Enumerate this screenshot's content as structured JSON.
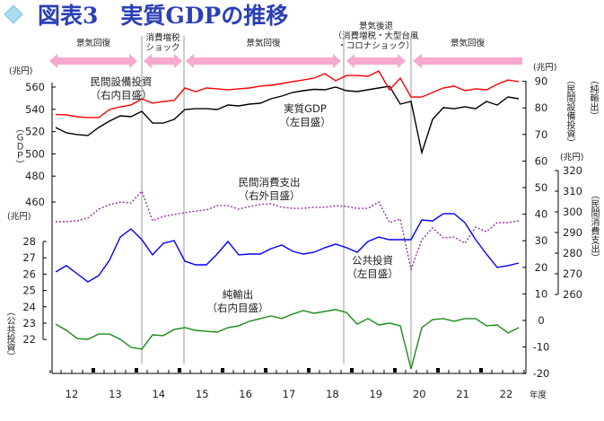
{
  "title": "図表3　実質GDPの推移",
  "colors": {
    "gdp": "#000000",
    "capex": "#ff0000",
    "consumption": "#9b2ca8",
    "public": "#0000ff",
    "netexports": "#1a8a1a",
    "arrow": "#f6a8cf",
    "title": "#2b3fb5"
  },
  "periods": [
    {
      "label": "景気回復",
      "direction": "both"
    },
    {
      "label": "消費増税\nショック",
      "direction": "both"
    },
    {
      "label": "景気回復",
      "direction": "both"
    },
    {
      "label": "景気後退\n（消費増税・大型台風\n・コロナショック）",
      "direction": "both"
    },
    {
      "label": "景気回復",
      "direction": "left"
    }
  ],
  "chart_data": {
    "type": "line",
    "xlabel": "年度",
    "x_tick_labels": [
      "12",
      "13",
      "14",
      "15",
      "16",
      "17",
      "18",
      "19",
      "20",
      "21",
      "22"
    ],
    "quarters_per_year": 4,
    "axes": {
      "left_gdp": {
        "unit": "(兆円)",
        "label": "（ＧＤＰ）",
        "ticks": [
          460,
          480,
          500,
          520,
          540,
          560
        ]
      },
      "left_public": {
        "unit": "(兆円)",
        "label": "（公共投資）",
        "ticks": [
          22,
          23,
          24,
          25,
          26,
          27,
          28
        ]
      },
      "right_inner": {
        "unit": "(兆円)",
        "label_a": "（民間設備投資）",
        "label_b": "（純輸出）",
        "ticks": [
          -20,
          -10,
          0,
          10,
          20,
          30,
          40,
          50,
          60,
          70,
          80,
          90
        ]
      },
      "right_outer": {
        "unit": "(兆円)",
        "label": "（民間消費支出）",
        "ticks": [
          260,
          270,
          280,
          290,
          300,
          310,
          320
        ]
      }
    },
    "series": [
      {
        "key": "gdp",
        "name": "実質GDP",
        "annotation": [
          "実質GDP",
          "（左目盛）"
        ],
        "axis": "left_gdp",
        "values": [
          523.7,
          518.9,
          517.3,
          516.5,
          523.7,
          529.4,
          534.2,
          533.4,
          538.2,
          527.7,
          527.7,
          531.0,
          539.8,
          540.6,
          540.6,
          539.8,
          543.9,
          543.1,
          544.7,
          545.5,
          549.5,
          551.9,
          555.2,
          556.8,
          558.0,
          557.6,
          560.0,
          556.8,
          556.0,
          557.6,
          559.2,
          560.8,
          544.7,
          547.1,
          501.1,
          531.0,
          541.5,
          540.6,
          542.3,
          540.6,
          547.1,
          543.9,
          551.1,
          549.5
        ]
      },
      {
        "key": "capex",
        "name": "民間設備投資",
        "annotation": [
          "民間設備投資",
          "（右内目盛）"
        ],
        "axis": "right_inner",
        "values": [
          77.5,
          77.4,
          76.7,
          76.4,
          76.4,
          79.4,
          80.4,
          81.1,
          83.4,
          81.8,
          82.4,
          82.8,
          87.5,
          86.1,
          87.5,
          87.2,
          86.8,
          87.2,
          87.5,
          88.2,
          88.5,
          89.2,
          89.9,
          90.5,
          91.2,
          92.9,
          90.2,
          92.2,
          92.2,
          91.9,
          93.9,
          86.8,
          91.2,
          84.1,
          84.1,
          85.8,
          87.5,
          88.2,
          86.5,
          87.2,
          86.8,
          88.9,
          90.5,
          89.9
        ]
      },
      {
        "key": "consumption",
        "name": "民間消費支出",
        "annotation": [
          "民間消費支出",
          "（右外目盛）"
        ],
        "axis": "right_outer",
        "dashed": true,
        "values": [
          295.2,
          295.2,
          295.7,
          297.0,
          301.3,
          303.5,
          304.8,
          304.3,
          310.0,
          295.7,
          297.8,
          298.7,
          299.6,
          300.4,
          300.9,
          303.0,
          303.0,
          301.3,
          302.6,
          303.5,
          303.9,
          302.2,
          301.7,
          301.7,
          302.2,
          302.2,
          303.0,
          302.6,
          301.7,
          301.7,
          304.8,
          294.8,
          296.5,
          272.2,
          286.5,
          292.2,
          287.4,
          287.8,
          284.8,
          292.6,
          290.4,
          294.8,
          294.8,
          295.7
        ]
      },
      {
        "key": "public",
        "name": "公共投資",
        "annotation": [
          "公共投資",
          "（左目盛）"
        ],
        "axis": "left_public",
        "values": [
          26.13,
          26.52,
          26.02,
          25.53,
          25.91,
          26.85,
          28.27,
          28.77,
          28.11,
          27.18,
          27.89,
          28.05,
          26.79,
          26.57,
          26.57,
          27.23,
          28.0,
          27.18,
          27.23,
          27.23,
          27.56,
          27.78,
          27.4,
          27.23,
          27.34,
          27.62,
          27.84,
          27.62,
          27.34,
          28.0,
          28.27,
          28.11,
          28.11,
          28.11,
          29.32,
          29.26,
          29.7,
          29.7,
          29.15,
          28.11,
          27.23,
          26.41,
          26.52,
          26.68
        ]
      },
      {
        "key": "netexports",
        "name": "純輸出",
        "annotation": [
          "純輸出",
          "（右内目盛）"
        ],
        "axis": "right_inner",
        "values": [
          -1.4,
          -3.7,
          -6.8,
          -7.1,
          -5.1,
          -5.1,
          -7.1,
          -10.1,
          -10.8,
          -5.4,
          -5.7,
          -3.4,
          -2.7,
          -3.7,
          -4.1,
          -4.4,
          -2.7,
          -2.0,
          -0.3,
          0.7,
          1.7,
          0.7,
          2.4,
          3.7,
          2.7,
          3.4,
          4.1,
          3.0,
          -1.4,
          0.7,
          -1.7,
          -1.0,
          -2.0,
          -18.2,
          -2.7,
          0.3,
          0.7,
          -0.3,
          0.7,
          0.7,
          -2.0,
          -1.7,
          -4.7,
          -2.7
        ]
      }
    ]
  }
}
